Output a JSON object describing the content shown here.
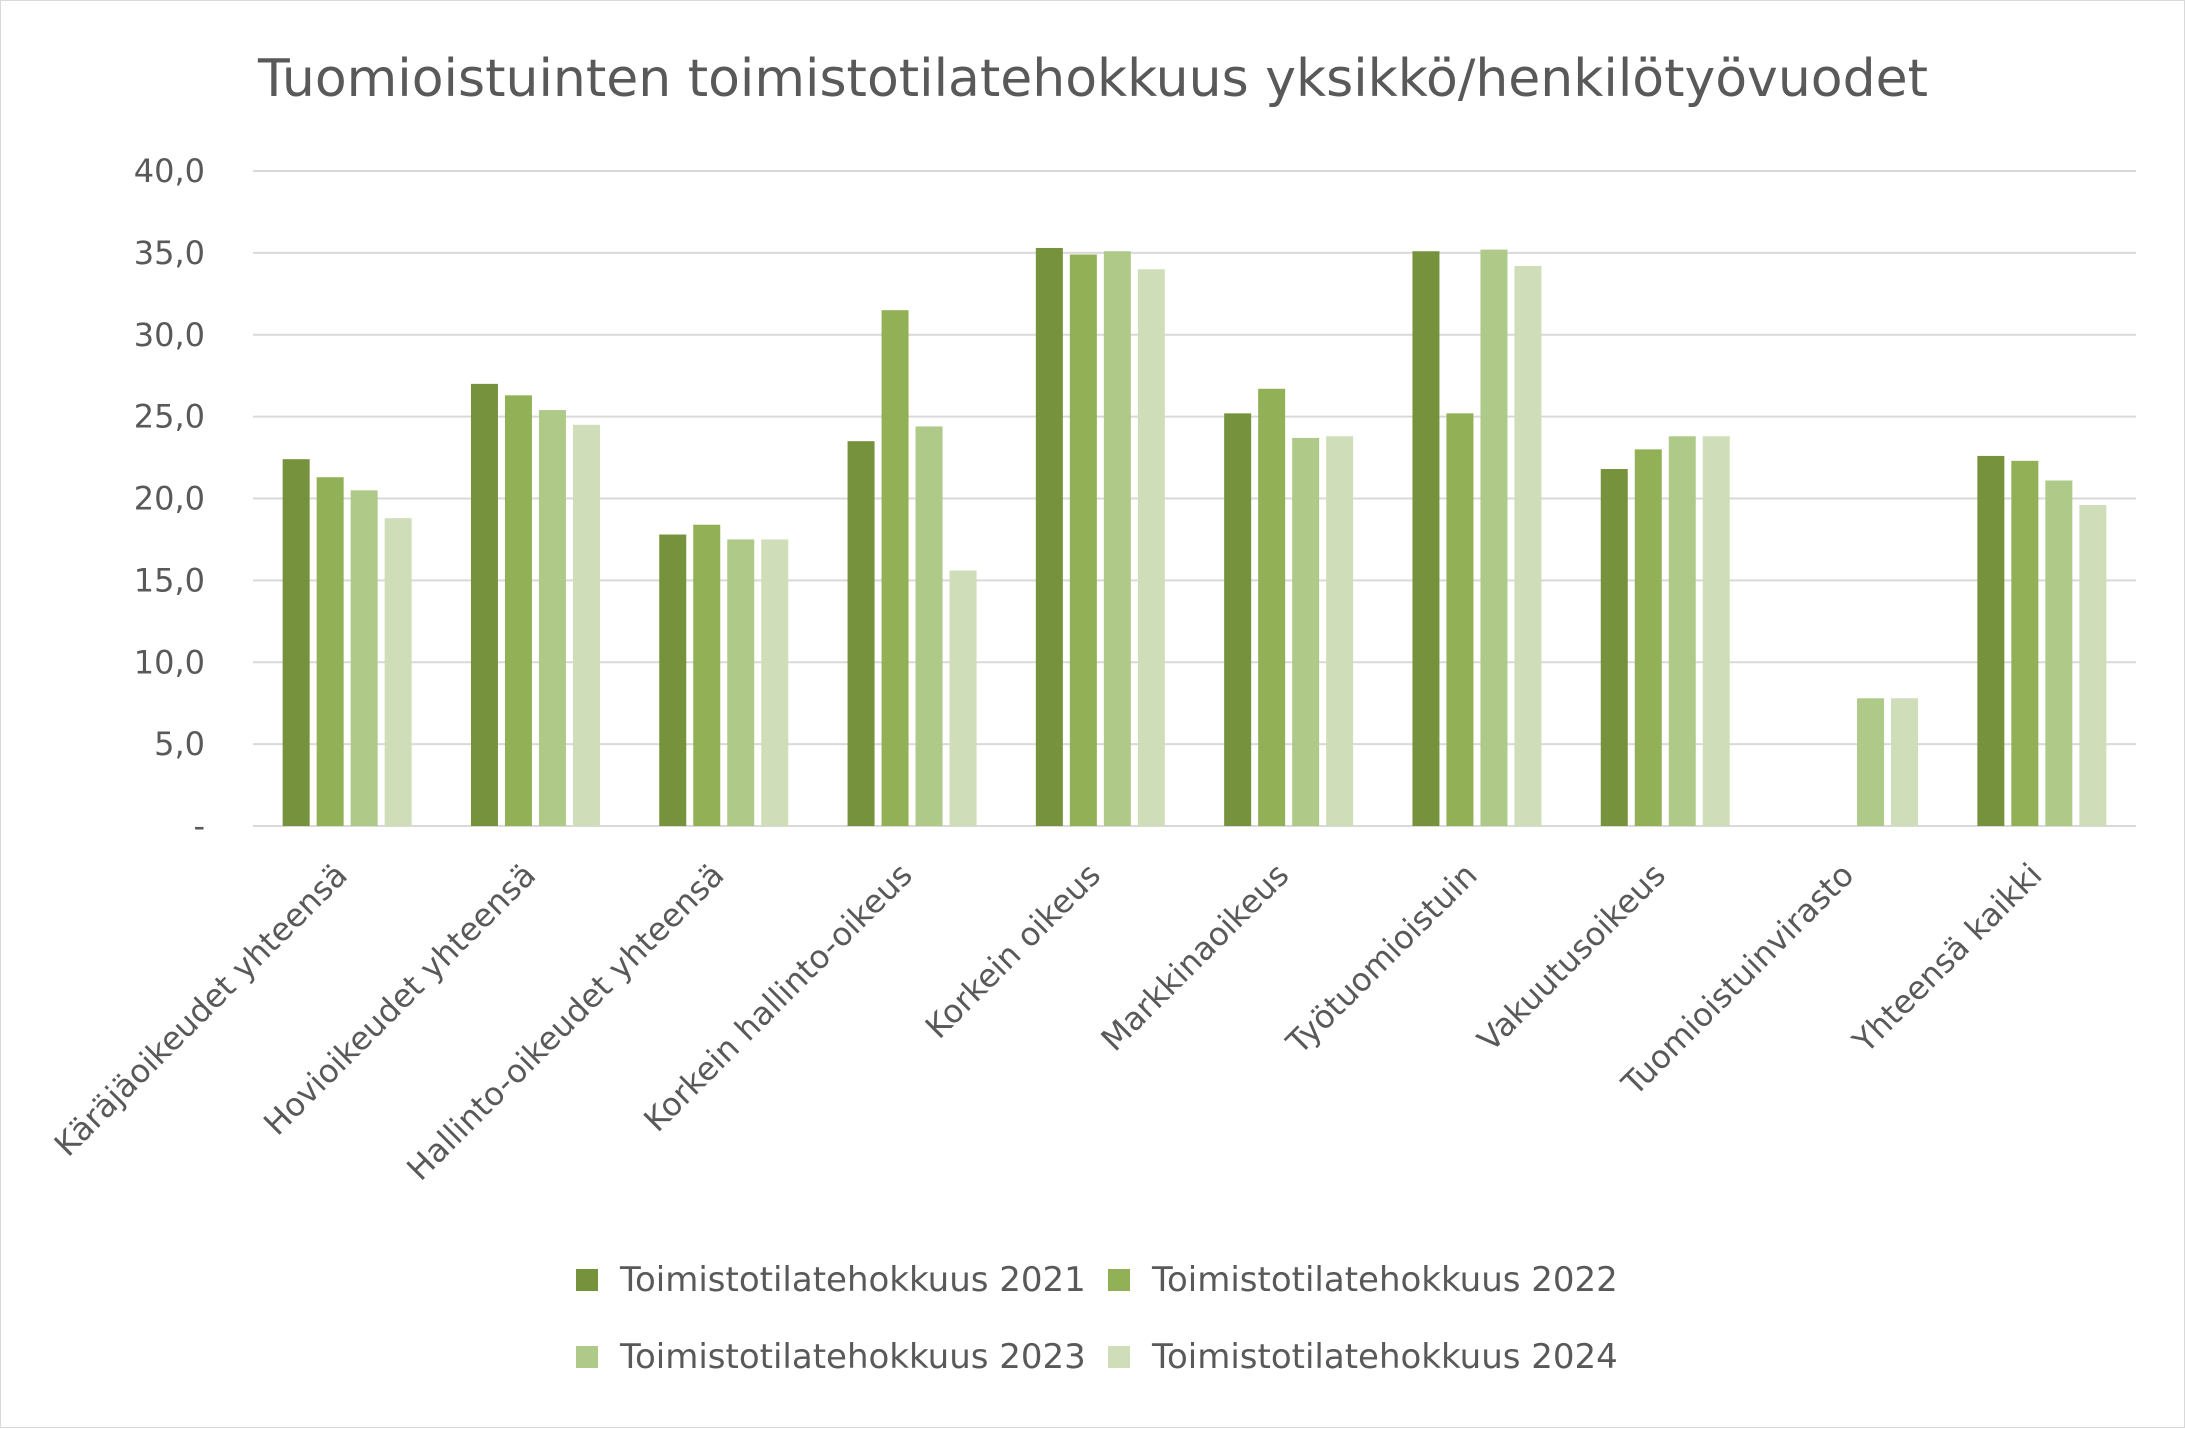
{
  "chart_data": {
    "type": "bar",
    "title": "Tuomioistuinten toimistotilatehokkuus yksikkö/henkilötyövuodet",
    "xlabel": "",
    "ylabel": "",
    "ylim": [
      0,
      40
    ],
    "ytick_labels": [
      "-",
      "5,0",
      "10,0",
      "15,0",
      "20,0",
      "25,0",
      "30,0",
      "35,0",
      "40,0"
    ],
    "grid": true,
    "legend_position": "bottom",
    "categories": [
      "Käräjäoikeudet yhteensä",
      "Hovioikeudet yhteensä",
      "Hallinto-oikeudet yhteensä",
      "Korkein hallinto-oikeus",
      "Korkein oikeus",
      "Markkinaoikeus",
      "Työtuomioistuin",
      "Vakuutusoikeus",
      "Tuomioistuinvirasto",
      "Yhteensä kaikki"
    ],
    "series": [
      {
        "name": "Toimistotilatehokkuus 2021",
        "color": "#76923c",
        "values": [
          22.4,
          27.0,
          17.8,
          23.5,
          35.3,
          25.2,
          35.1,
          21.8,
          null,
          22.6
        ]
      },
      {
        "name": "Toimistotilatehokkuus 2022",
        "color": "#92b055",
        "values": [
          21.3,
          26.3,
          18.4,
          31.5,
          34.9,
          26.7,
          25.2,
          23.0,
          null,
          22.3
        ]
      },
      {
        "name": "Toimistotilatehokkuus 2023",
        "color": "#afc989",
        "values": [
          20.5,
          25.4,
          17.5,
          24.4,
          35.1,
          23.7,
          35.2,
          23.8,
          7.8,
          21.1
        ]
      },
      {
        "name": "Toimistotilatehokkuus 2024",
        "color": "#cfddb8",
        "values": [
          18.8,
          24.5,
          17.5,
          15.6,
          34.0,
          23.8,
          34.2,
          23.8,
          7.8,
          19.6
        ]
      }
    ]
  }
}
